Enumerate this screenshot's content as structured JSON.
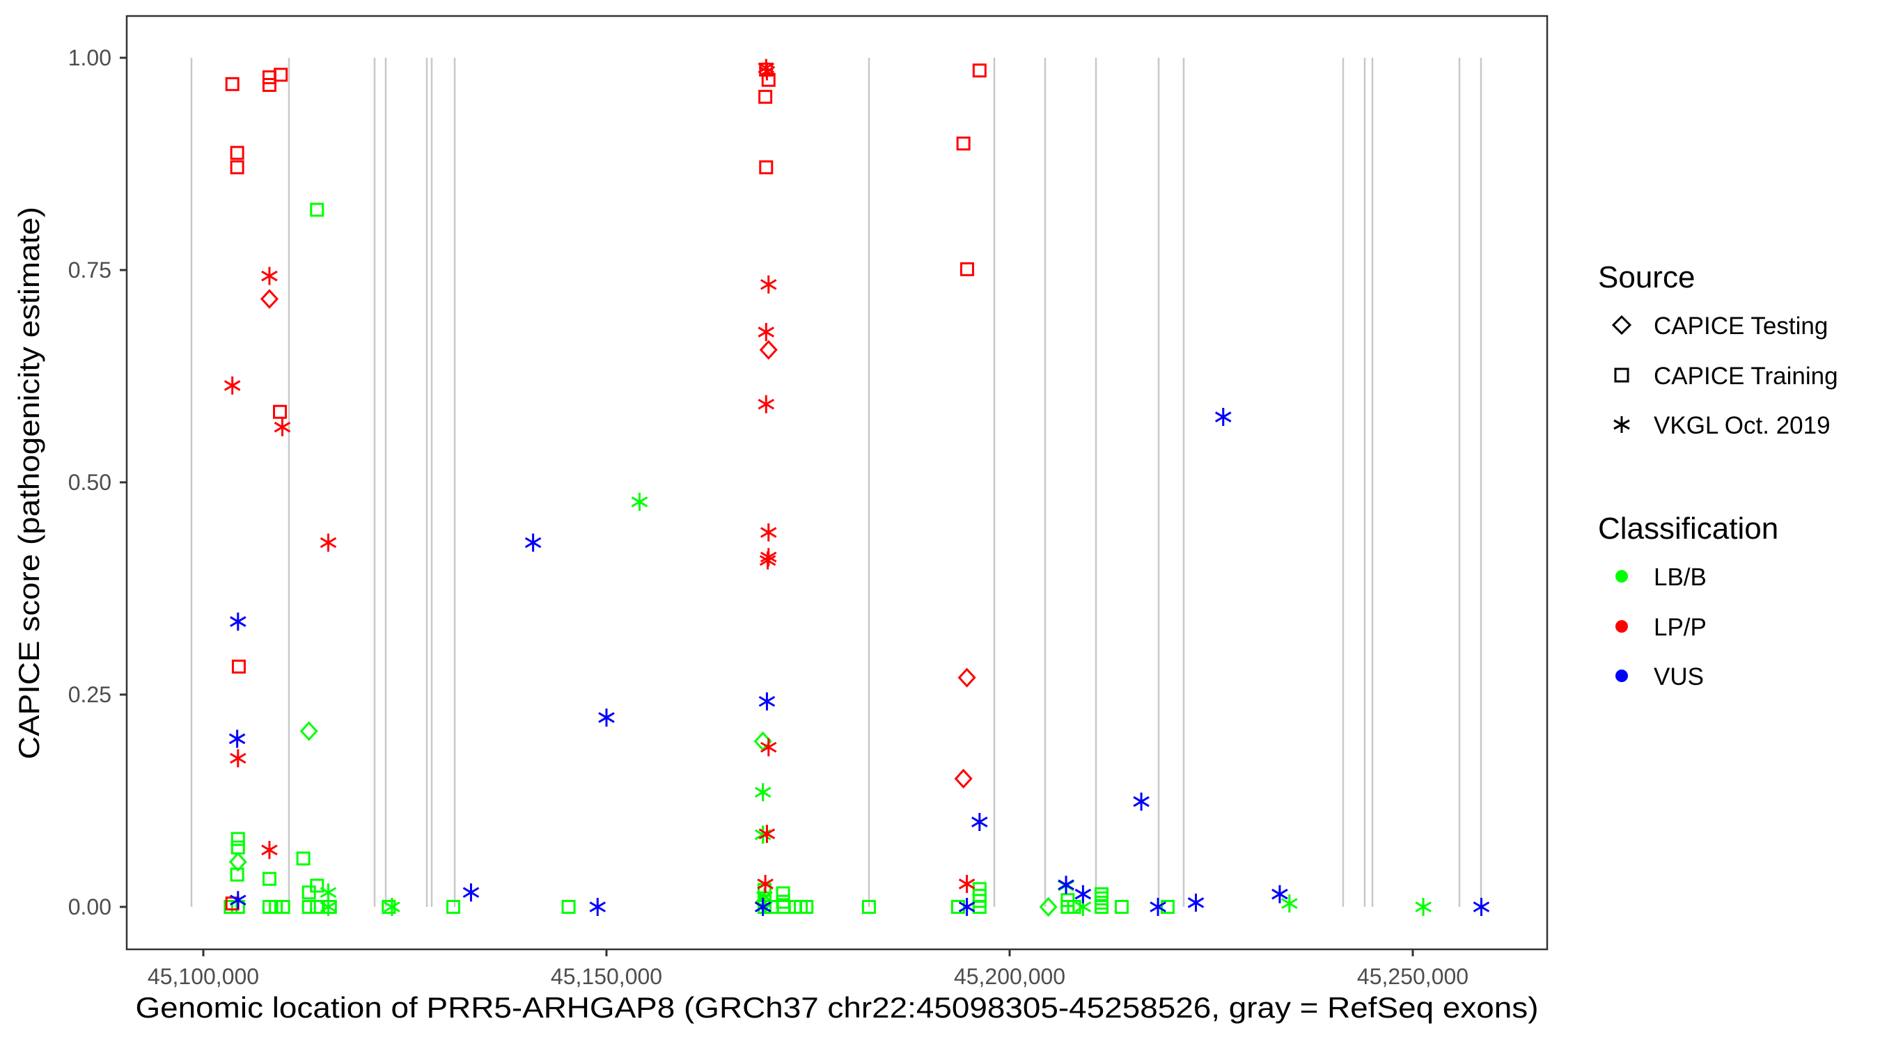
{
  "chart_data": {
    "type": "scatter",
    "title": "",
    "xlabel": "Genomic location of PRR5-ARHGAP8 (GRCh37 chr22:45098305-45258526, gray = RefSeq exons)",
    "ylabel": "CAPICE score (pathogenicity estimate)",
    "xlim": [
      45090500,
      45261500
    ],
    "ylim": [
      -0.05,
      1.05
    ],
    "x_ticks": [
      45100000,
      45150000,
      45200000,
      45250000
    ],
    "x_tick_labels": [
      "45,100,000",
      "45,150,000",
      "45,200,000",
      "45,250,000"
    ],
    "y_ticks": [
      0,
      0.25,
      0.5,
      0.75,
      1.0
    ],
    "y_tick_labels": [
      "0.00",
      "0.25",
      "0.50",
      "0.75",
      "1.00"
    ],
    "grid": false,
    "exon_color": "#c8c8c8",
    "exons": [
      45098532,
      45110622,
      45121244,
      45122625,
      45127720,
      45128325,
      45131175,
      45182556,
      45198100,
      45204404,
      45210708,
      45218480,
      45221589,
      45241364,
      45244041,
      45244991,
      45255786,
      45258463
    ],
    "legend": {
      "placement": "right",
      "source": {
        "title": "Source",
        "items": [
          {
            "label": "CAPICE Testing",
            "shape": "diamond-open"
          },
          {
            "label": "CAPICE Training",
            "shape": "square-open"
          },
          {
            "label": "VKGL Oct. 2019",
            "shape": "asterisk"
          }
        ]
      },
      "classification": {
        "title": "Classification",
        "items": [
          {
            "label": "LB/B",
            "color": "#00ff00"
          },
          {
            "label": "LP/P",
            "color": "#ff0000"
          },
          {
            "label": "VUS",
            "color": "#0000ff"
          }
        ]
      }
    },
    "point_fields": [
      "x",
      "y",
      "source_index",
      "classification_index"
    ],
    "points": [
      [
        45114100,
        0.821,
        1,
        0
      ],
      [
        45104300,
        0.08,
        1,
        0
      ],
      [
        45104300,
        0.07,
        1,
        0
      ],
      [
        45104200,
        0.038,
        1,
        0
      ],
      [
        45112400,
        0.057,
        1,
        0
      ],
      [
        45108200,
        0.033,
        1,
        0
      ],
      [
        45114100,
        0.025,
        1,
        0
      ],
      [
        45113100,
        0.017,
        1,
        0
      ],
      [
        45103400,
        0,
        1,
        0
      ],
      [
        45104300,
        0,
        1,
        0
      ],
      [
        45108200,
        0,
        1,
        0
      ],
      [
        45109000,
        0,
        1,
        0
      ],
      [
        45109900,
        0,
        1,
        0
      ],
      [
        45113100,
        0,
        1,
        0
      ],
      [
        45114100,
        0,
        1,
        0
      ],
      [
        45115700,
        0,
        1,
        0
      ],
      [
        45123000,
        0,
        1,
        0
      ],
      [
        45131000,
        0,
        1,
        0
      ],
      [
        45145300,
        0,
        1,
        0
      ],
      [
        45169600,
        0.02,
        1,
        0
      ],
      [
        45169600,
        0.01,
        1,
        0
      ],
      [
        45169600,
        0,
        1,
        0
      ],
      [
        45170500,
        0,
        1,
        0
      ],
      [
        45171900,
        0.016,
        1,
        0
      ],
      [
        45171900,
        0.006,
        1,
        0
      ],
      [
        45172000,
        0,
        1,
        0
      ],
      [
        45173400,
        0,
        1,
        0
      ],
      [
        45174100,
        0,
        1,
        0
      ],
      [
        45174800,
        0,
        1,
        0
      ],
      [
        45182550,
        0,
        1,
        0
      ],
      [
        45193600,
        0,
        1,
        0
      ],
      [
        45196270,
        0.021,
        1,
        0
      ],
      [
        45196270,
        0.013,
        1,
        0
      ],
      [
        45196270,
        0.007,
        1,
        0
      ],
      [
        45196270,
        0,
        1,
        0
      ],
      [
        45207200,
        0.008,
        1,
        0
      ],
      [
        45207200,
        0,
        1,
        0
      ],
      [
        45208000,
        0,
        1,
        0
      ],
      [
        45211400,
        0.015,
        1,
        0
      ],
      [
        45211400,
        0.01,
        1,
        0
      ],
      [
        45211400,
        0.005,
        1,
        0
      ],
      [
        45211400,
        0,
        1,
        0
      ],
      [
        45213900,
        0,
        1,
        0
      ],
      [
        45219600,
        0,
        1,
        0
      ],
      [
        45113100,
        0.207,
        0,
        0
      ],
      [
        45169400,
        0.195,
        0,
        0
      ],
      [
        45104300,
        0.053,
        0,
        0
      ],
      [
        45204800,
        0,
        0,
        0
      ],
      [
        45169500,
        0.005,
        0,
        0
      ],
      [
        45154100,
        0.477,
        2,
        0
      ],
      [
        45169400,
        0.135,
        2,
        0
      ],
      [
        45169400,
        0.085,
        2,
        0
      ],
      [
        45115500,
        0.017,
        2,
        0
      ],
      [
        45115500,
        0,
        2,
        0
      ],
      [
        45123400,
        0,
        2,
        0
      ],
      [
        45207000,
        0.025,
        2,
        0
      ],
      [
        45209100,
        0,
        2,
        0
      ],
      [
        45234700,
        0.004,
        2,
        0
      ],
      [
        45251300,
        0,
        2,
        0
      ],
      [
        45169600,
        0.012,
        2,
        0
      ],
      [
        45103600,
        0.969,
        1,
        1
      ],
      [
        45108200,
        0.977,
        1,
        1
      ],
      [
        45108200,
        0.968,
        1,
        1
      ],
      [
        45109600,
        0.98,
        1,
        1
      ],
      [
        45104200,
        0.888,
        1,
        1
      ],
      [
        45104200,
        0.871,
        1,
        1
      ],
      [
        45109500,
        0.583,
        1,
        1
      ],
      [
        45104400,
        0.283,
        1,
        1
      ],
      [
        45103600,
        0.004,
        1,
        1
      ],
      [
        45169800,
        0.986,
        1,
        1
      ],
      [
        45170100,
        0.974,
        1,
        1
      ],
      [
        45169700,
        0.954,
        1,
        1
      ],
      [
        45169800,
        0.871,
        1,
        1
      ],
      [
        45196270,
        0.985,
        1,
        1
      ],
      [
        45194270,
        0.899,
        1,
        1
      ],
      [
        45194730,
        0.751,
        1,
        1
      ],
      [
        45108200,
        0.743,
        2,
        1
      ],
      [
        45103600,
        0.614,
        2,
        1
      ],
      [
        45109800,
        0.565,
        2,
        1
      ],
      [
        45115500,
        0.429,
        2,
        1
      ],
      [
        45104300,
        0.175,
        2,
        1
      ],
      [
        45108200,
        0.067,
        2,
        1
      ],
      [
        45169800,
        0.988,
        2,
        1
      ],
      [
        45169900,
        0.984,
        2,
        1
      ],
      [
        45170100,
        0.733,
        2,
        1
      ],
      [
        45169800,
        0.677,
        2,
        1
      ],
      [
        45169800,
        0.592,
        2,
        1
      ],
      [
        45170100,
        0.441,
        2,
        1
      ],
      [
        45170100,
        0.412,
        2,
        1
      ],
      [
        45170000,
        0.408,
        2,
        1
      ],
      [
        45170100,
        0.188,
        2,
        1
      ],
      [
        45169900,
        0.086,
        2,
        1
      ],
      [
        45169700,
        0.027,
        2,
        1
      ],
      [
        45194700,
        0.027,
        2,
        1
      ],
      [
        45108200,
        0.716,
        0,
        1
      ],
      [
        45170100,
        0.656,
        0,
        1
      ],
      [
        45194700,
        0.27,
        0,
        1
      ],
      [
        45194270,
        0.151,
        0,
        1
      ],
      [
        45140900,
        0.429,
        2,
        2
      ],
      [
        45104300,
        0.336,
        2,
        2
      ],
      [
        45169900,
        0.242,
        2,
        2
      ],
      [
        45150000,
        0.223,
        2,
        2
      ],
      [
        45104200,
        0.198,
        2,
        2
      ],
      [
        45104300,
        0.008,
        2,
        2
      ],
      [
        45133200,
        0.017,
        2,
        2
      ],
      [
        45148900,
        0,
        2,
        2
      ],
      [
        45169400,
        0,
        2,
        2
      ],
      [
        45226490,
        0.577,
        2,
        2
      ],
      [
        45216330,
        0.124,
        2,
        2
      ],
      [
        45196270,
        0.1,
        2,
        2
      ],
      [
        45194700,
        0,
        2,
        2
      ],
      [
        45207000,
        0.026,
        2,
        2
      ],
      [
        45209100,
        0.015,
        2,
        2
      ],
      [
        45218400,
        0,
        2,
        2
      ],
      [
        45223100,
        0.005,
        2,
        2
      ],
      [
        45233500,
        0.015,
        2,
        2
      ],
      [
        45258500,
        0,
        2,
        2
      ]
    ]
  }
}
